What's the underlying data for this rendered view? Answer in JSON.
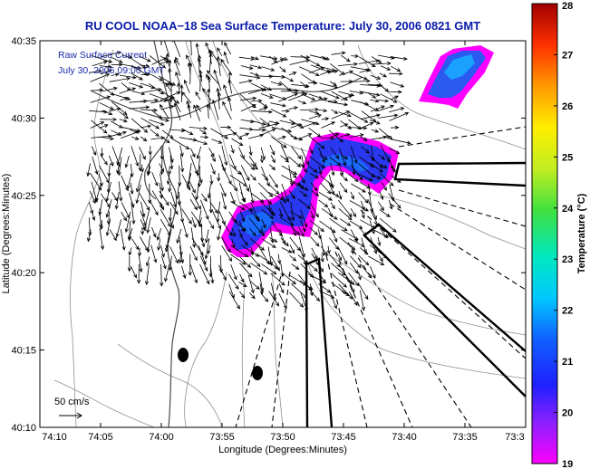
{
  "chart_data": {
    "type": "map",
    "title": "RU COOL  NOAA−18  Sea Surface Temperature:  July 30, 2006 0821 GMT",
    "xlabel": "Longitude (Degrees:Minutes)",
    "ylabel": "Latitude (Degrees:Minutes)",
    "x_ticks": [
      "74:10",
      "74:05",
      "74:00",
      "73:55",
      "73:50",
      "73:45",
      "73:40",
      "73:35",
      "73:3"
    ],
    "y_ticks": [
      "40:35",
      "40:30",
      "40:25",
      "40:20",
      "40:15",
      "40:10"
    ],
    "legend": {
      "line1": "Raw Surface Current",
      "line2": "July 30, 2006 09:00 GMT",
      "scale_label": "50 cm/s"
    },
    "colorbar": {
      "label": "Temperature (°C)",
      "ticks": [
        "28",
        "27",
        "26",
        "25",
        "24",
        "23",
        "22",
        "21",
        "20",
        "19"
      ],
      "range": [
        19,
        28
      ]
    },
    "colors": {
      "title": "#0a1aa8",
      "legend_text": "#1a2aa8",
      "arrows": "#000000",
      "bathymetry": "#8a8a8a"
    }
  }
}
